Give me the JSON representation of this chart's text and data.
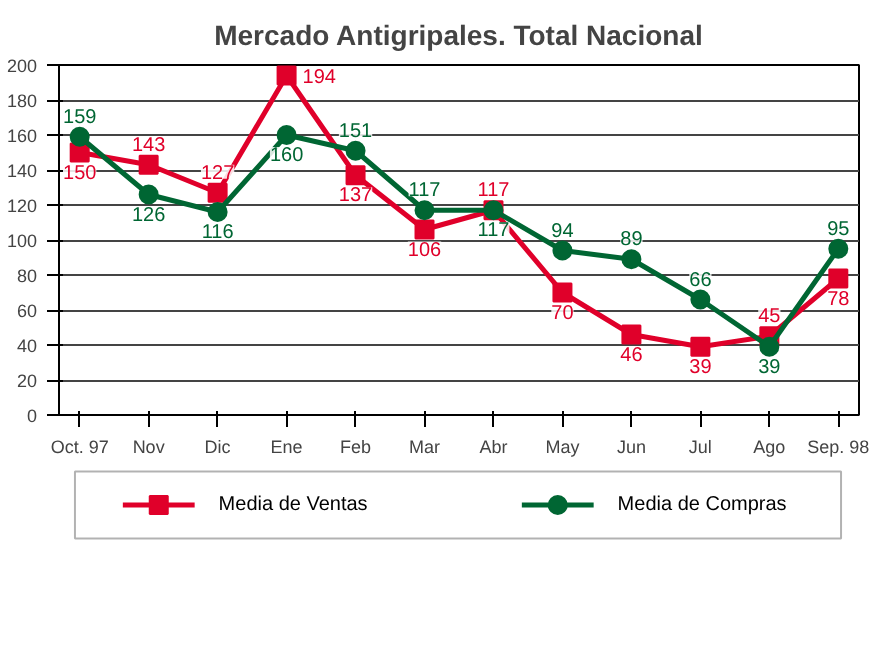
{
  "chart_data": {
    "type": "line",
    "title": "Mercado Antigripales. Total Nacional",
    "categories": [
      "Oct. 97",
      "Nov",
      "Dic",
      "Ene",
      "Feb",
      "Mar",
      "Abr",
      "May",
      "Jun",
      "Jul",
      "Ago",
      "Sep. 98"
    ],
    "series": [
      {
        "name": "Media de Ventas",
        "color": "#e0002a",
        "marker": "square",
        "values": [
          150,
          143,
          127,
          194,
          137,
          106,
          117,
          70,
          46,
          39,
          45,
          78
        ]
      },
      {
        "name": "Media de Compras",
        "color": "#006633",
        "marker": "circle",
        "values": [
          159,
          126,
          116,
          160,
          151,
          117,
          117,
          94,
          89,
          66,
          39,
          95
        ]
      }
    ],
    "ylim": [
      0,
      200
    ],
    "yticks": [
      0,
      20,
      40,
      60,
      80,
      100,
      120,
      140,
      160,
      180,
      200
    ],
    "grid": "y",
    "legend": "bottom",
    "data_labels": true,
    "line_style": "solid"
  }
}
